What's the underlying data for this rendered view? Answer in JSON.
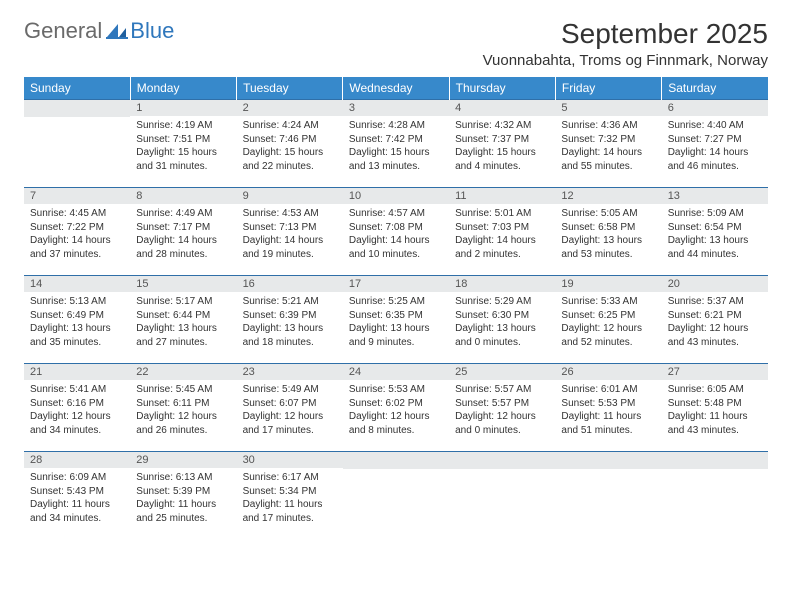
{
  "logo": {
    "word1": "General",
    "word2": "Blue"
  },
  "title": "September 2025",
  "location": "Vuonnabahta, Troms og Finnmark, Norway",
  "colors": {
    "header_bg": "#3789cb",
    "header_text": "#ffffff",
    "daynum_bg": "#e7e9ea",
    "daynum_text": "#555555",
    "row_border": "#2f6fa8",
    "logo_gray": "#6a6a6a",
    "logo_blue": "#2f77bc",
    "body_text": "#333333"
  },
  "weekdays": [
    "Sunday",
    "Monday",
    "Tuesday",
    "Wednesday",
    "Thursday",
    "Friday",
    "Saturday"
  ],
  "weeks": [
    [
      {
        "n": "",
        "sr": "",
        "ss": "",
        "dl": ""
      },
      {
        "n": "1",
        "sr": "Sunrise: 4:19 AM",
        "ss": "Sunset: 7:51 PM",
        "dl": "Daylight: 15 hours and 31 minutes."
      },
      {
        "n": "2",
        "sr": "Sunrise: 4:24 AM",
        "ss": "Sunset: 7:46 PM",
        "dl": "Daylight: 15 hours and 22 minutes."
      },
      {
        "n": "3",
        "sr": "Sunrise: 4:28 AM",
        "ss": "Sunset: 7:42 PM",
        "dl": "Daylight: 15 hours and 13 minutes."
      },
      {
        "n": "4",
        "sr": "Sunrise: 4:32 AM",
        "ss": "Sunset: 7:37 PM",
        "dl": "Daylight: 15 hours and 4 minutes."
      },
      {
        "n": "5",
        "sr": "Sunrise: 4:36 AM",
        "ss": "Sunset: 7:32 PM",
        "dl": "Daylight: 14 hours and 55 minutes."
      },
      {
        "n": "6",
        "sr": "Sunrise: 4:40 AM",
        "ss": "Sunset: 7:27 PM",
        "dl": "Daylight: 14 hours and 46 minutes."
      }
    ],
    [
      {
        "n": "7",
        "sr": "Sunrise: 4:45 AM",
        "ss": "Sunset: 7:22 PM",
        "dl": "Daylight: 14 hours and 37 minutes."
      },
      {
        "n": "8",
        "sr": "Sunrise: 4:49 AM",
        "ss": "Sunset: 7:17 PM",
        "dl": "Daylight: 14 hours and 28 minutes."
      },
      {
        "n": "9",
        "sr": "Sunrise: 4:53 AM",
        "ss": "Sunset: 7:13 PM",
        "dl": "Daylight: 14 hours and 19 minutes."
      },
      {
        "n": "10",
        "sr": "Sunrise: 4:57 AM",
        "ss": "Sunset: 7:08 PM",
        "dl": "Daylight: 14 hours and 10 minutes."
      },
      {
        "n": "11",
        "sr": "Sunrise: 5:01 AM",
        "ss": "Sunset: 7:03 PM",
        "dl": "Daylight: 14 hours and 2 minutes."
      },
      {
        "n": "12",
        "sr": "Sunrise: 5:05 AM",
        "ss": "Sunset: 6:58 PM",
        "dl": "Daylight: 13 hours and 53 minutes."
      },
      {
        "n": "13",
        "sr": "Sunrise: 5:09 AM",
        "ss": "Sunset: 6:54 PM",
        "dl": "Daylight: 13 hours and 44 minutes."
      }
    ],
    [
      {
        "n": "14",
        "sr": "Sunrise: 5:13 AM",
        "ss": "Sunset: 6:49 PM",
        "dl": "Daylight: 13 hours and 35 minutes."
      },
      {
        "n": "15",
        "sr": "Sunrise: 5:17 AM",
        "ss": "Sunset: 6:44 PM",
        "dl": "Daylight: 13 hours and 27 minutes."
      },
      {
        "n": "16",
        "sr": "Sunrise: 5:21 AM",
        "ss": "Sunset: 6:39 PM",
        "dl": "Daylight: 13 hours and 18 minutes."
      },
      {
        "n": "17",
        "sr": "Sunrise: 5:25 AM",
        "ss": "Sunset: 6:35 PM",
        "dl": "Daylight: 13 hours and 9 minutes."
      },
      {
        "n": "18",
        "sr": "Sunrise: 5:29 AM",
        "ss": "Sunset: 6:30 PM",
        "dl": "Daylight: 13 hours and 0 minutes."
      },
      {
        "n": "19",
        "sr": "Sunrise: 5:33 AM",
        "ss": "Sunset: 6:25 PM",
        "dl": "Daylight: 12 hours and 52 minutes."
      },
      {
        "n": "20",
        "sr": "Sunrise: 5:37 AM",
        "ss": "Sunset: 6:21 PM",
        "dl": "Daylight: 12 hours and 43 minutes."
      }
    ],
    [
      {
        "n": "21",
        "sr": "Sunrise: 5:41 AM",
        "ss": "Sunset: 6:16 PM",
        "dl": "Daylight: 12 hours and 34 minutes."
      },
      {
        "n": "22",
        "sr": "Sunrise: 5:45 AM",
        "ss": "Sunset: 6:11 PM",
        "dl": "Daylight: 12 hours and 26 minutes."
      },
      {
        "n": "23",
        "sr": "Sunrise: 5:49 AM",
        "ss": "Sunset: 6:07 PM",
        "dl": "Daylight: 12 hours and 17 minutes."
      },
      {
        "n": "24",
        "sr": "Sunrise: 5:53 AM",
        "ss": "Sunset: 6:02 PM",
        "dl": "Daylight: 12 hours and 8 minutes."
      },
      {
        "n": "25",
        "sr": "Sunrise: 5:57 AM",
        "ss": "Sunset: 5:57 PM",
        "dl": "Daylight: 12 hours and 0 minutes."
      },
      {
        "n": "26",
        "sr": "Sunrise: 6:01 AM",
        "ss": "Sunset: 5:53 PM",
        "dl": "Daylight: 11 hours and 51 minutes."
      },
      {
        "n": "27",
        "sr": "Sunrise: 6:05 AM",
        "ss": "Sunset: 5:48 PM",
        "dl": "Daylight: 11 hours and 43 minutes."
      }
    ],
    [
      {
        "n": "28",
        "sr": "Sunrise: 6:09 AM",
        "ss": "Sunset: 5:43 PM",
        "dl": "Daylight: 11 hours and 34 minutes."
      },
      {
        "n": "29",
        "sr": "Sunrise: 6:13 AM",
        "ss": "Sunset: 5:39 PM",
        "dl": "Daylight: 11 hours and 25 minutes."
      },
      {
        "n": "30",
        "sr": "Sunrise: 6:17 AM",
        "ss": "Sunset: 5:34 PM",
        "dl": "Daylight: 11 hours and 17 minutes."
      },
      {
        "n": "",
        "sr": "",
        "ss": "",
        "dl": ""
      },
      {
        "n": "",
        "sr": "",
        "ss": "",
        "dl": ""
      },
      {
        "n": "",
        "sr": "",
        "ss": "",
        "dl": ""
      },
      {
        "n": "",
        "sr": "",
        "ss": "",
        "dl": ""
      }
    ]
  ]
}
